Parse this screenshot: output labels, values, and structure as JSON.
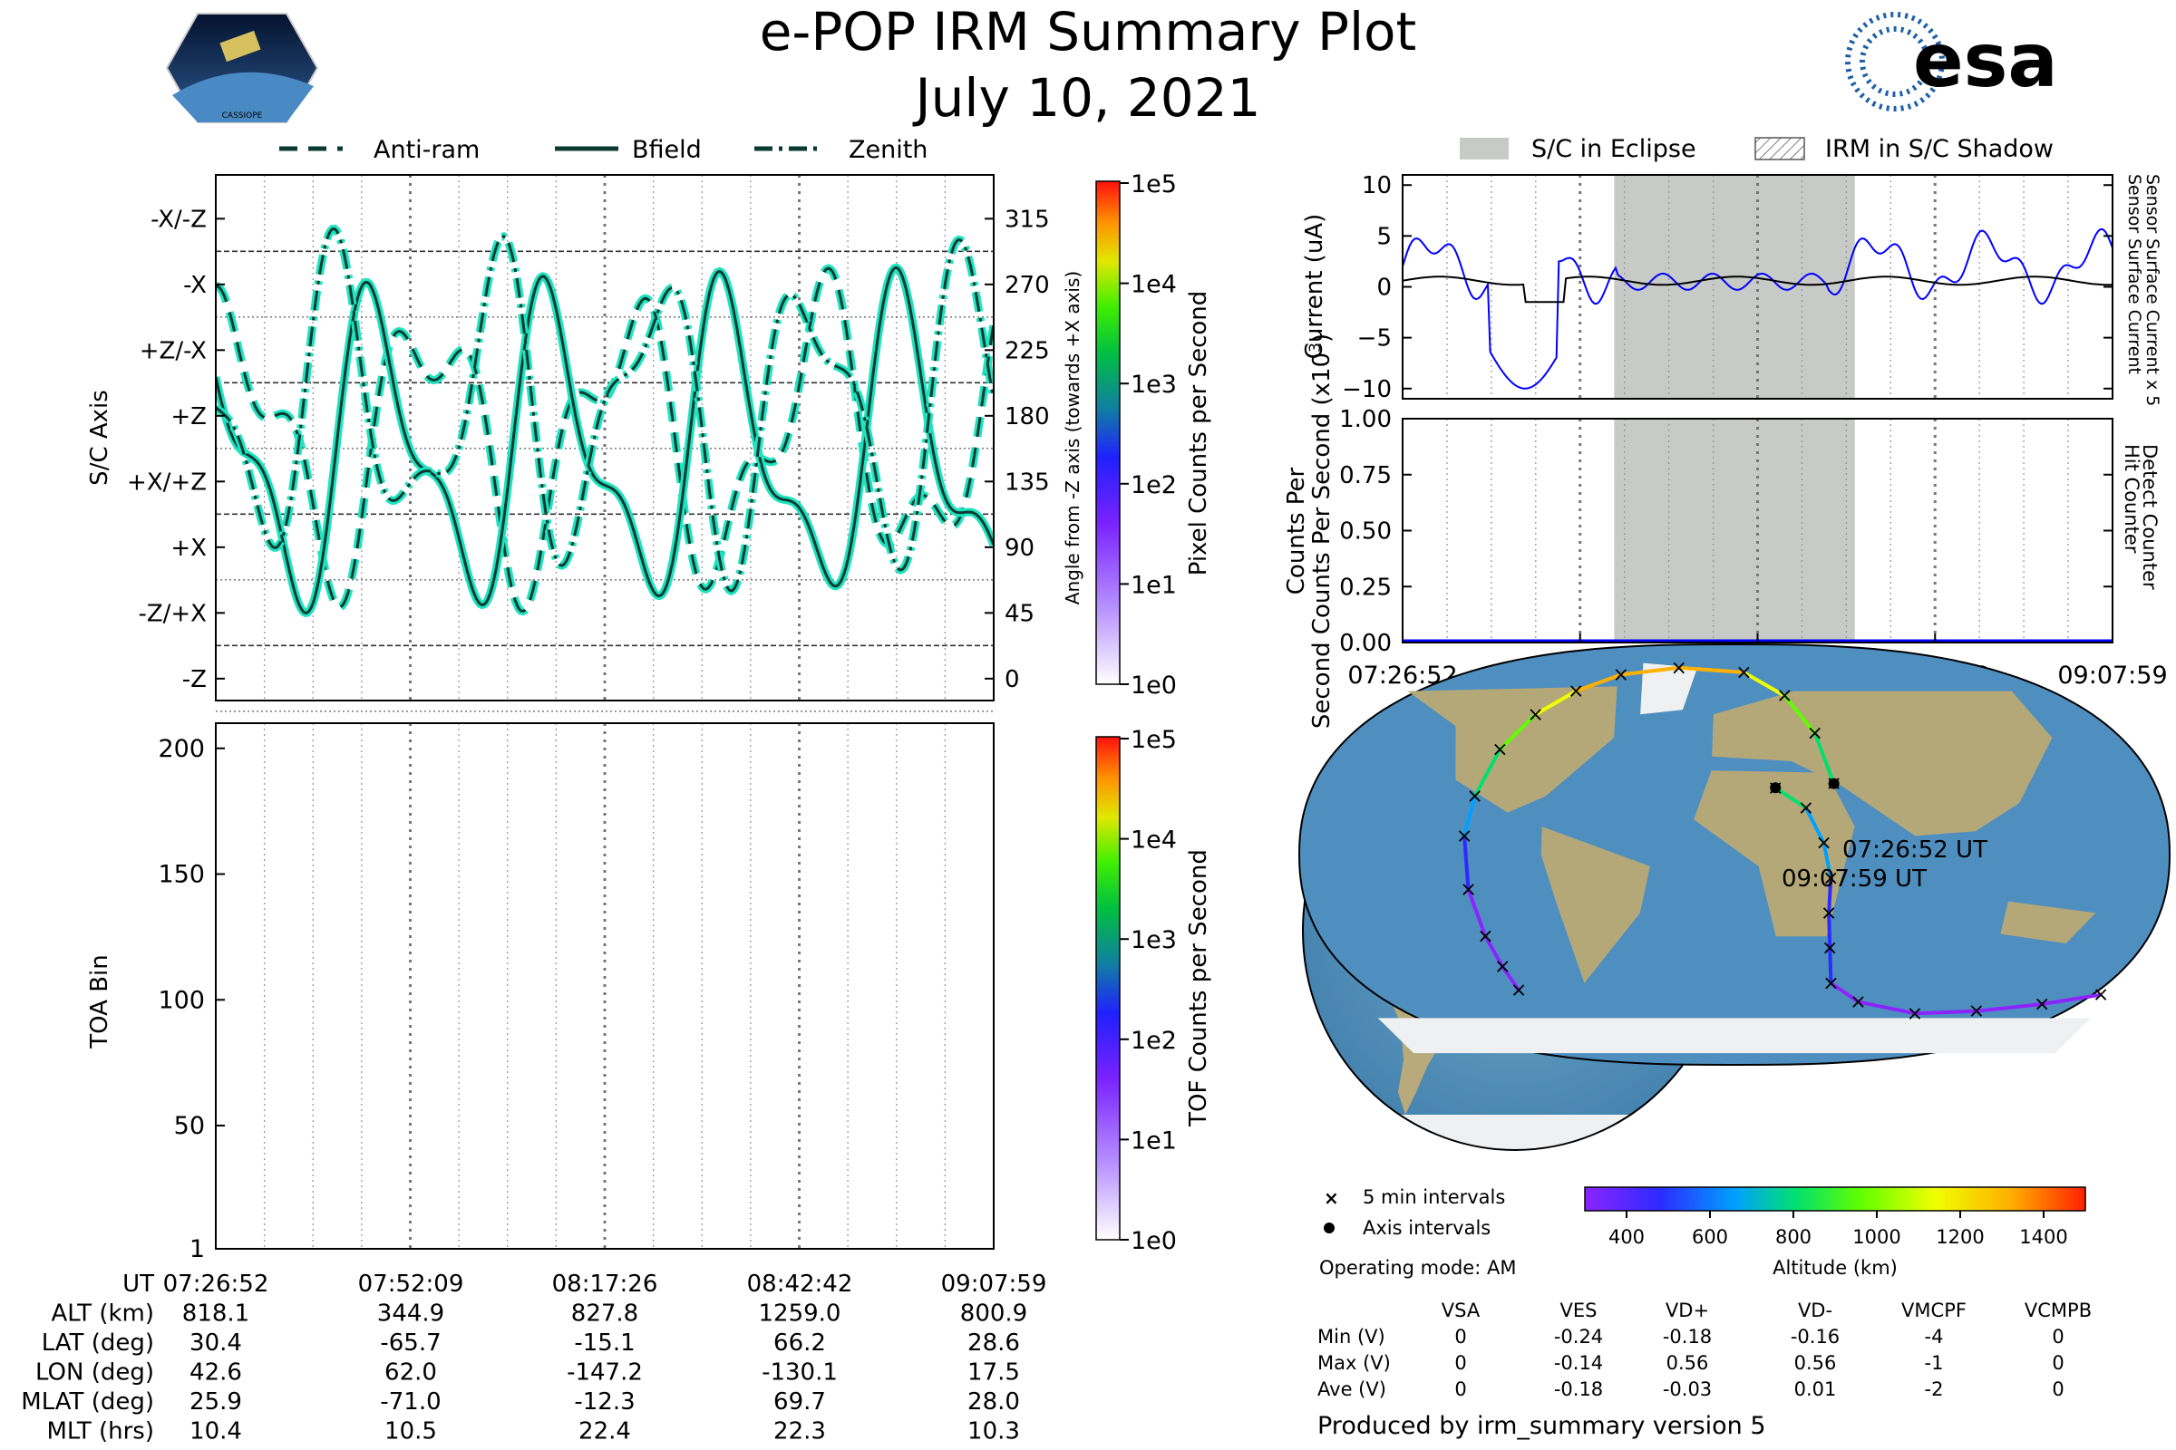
{
  "header": {
    "title": "e-POP IRM Summary Plot",
    "date": "July 10, 2021",
    "mission_badge": "CASSIOPE",
    "agency_logo": "esa"
  },
  "colors": {
    "trace_fill": "#1fe3c0",
    "trace_line": "#0a3a30",
    "eclipse_gray": "#c8cac8",
    "sensor_blue": "#0000ff",
    "altitude_colormap": [
      "#8b24ff",
      "#2b2bff",
      "#00a0ff",
      "#00e070",
      "#60ff00",
      "#f0ff00",
      "#ffb000",
      "#ff2000"
    ]
  },
  "chart_data": [
    {
      "id": "sc-axis-panel",
      "type": "line",
      "legend": [
        "Anti-ram",
        "Bfield",
        "Zenith"
      ],
      "ylabel_left": "S/C Axis",
      "ylabel_right": "Angle from -Z axis (towards +X axis)",
      "yticks_left": [
        "-X/-Z",
        "-X",
        "+Z/-X",
        "+Z",
        "+X/+Z",
        "+X",
        "-Z/+X",
        "-Z"
      ],
      "yticks_right": [
        "315",
        "270",
        "225",
        "180",
        "135",
        "90",
        "45",
        "0"
      ],
      "ylim": [
        -15,
        345
      ],
      "colorbar": {
        "label": "Pixel Counts per Second",
        "ticks": [
          "1e5",
          "1e4",
          "1e3",
          "1e2",
          "1e1",
          "1e0"
        ]
      }
    },
    {
      "id": "toa-panel",
      "type": "heatmap",
      "ylabel": "TOA Bin",
      "yticks": [
        "200",
        "150",
        "100",
        "50",
        "1"
      ],
      "ylim": [
        1,
        210
      ],
      "colorbar": {
        "label": "TOF Counts per Second",
        "ticks": [
          "1e5",
          "1e4",
          "1e3",
          "1e2",
          "1e1",
          "1e0"
        ]
      }
    },
    {
      "id": "current-panel",
      "type": "line",
      "legend": [
        "S/C in Eclipse",
        "IRM in S/C Shadow"
      ],
      "ylabel": "Current (uA)",
      "yticks": [
        "10",
        "5",
        "0",
        "−5",
        "−10"
      ],
      "ylim": [
        -11,
        11
      ],
      "right_label_blue": "Sensor Surface Current x 5",
      "right_label_black": "Sensor Surface Current",
      "eclipse_fraction": [
        0.298,
        0.637
      ]
    },
    {
      "id": "counts-panel",
      "type": "line",
      "ylabel": "Counts Per Second (x10",
      "ylabel_exponent": "3",
      "ylabel_close": ")",
      "yticks": [
        "1.00",
        "0.75",
        "0.50",
        "0.25",
        "0.00"
      ],
      "ylim": [
        0,
        1
      ],
      "right_label_blue": "Detect Counter",
      "right_label_black": "Hit Counter",
      "xticks": [
        "07:26:52",
        "07:52:09",
        "08:17:26",
        "08:42:42",
        "09:07:59"
      ]
    },
    {
      "id": "orbit-map",
      "type": "scatter",
      "start_label": "07:26:52 UT",
      "end_label": "09:07:59 UT",
      "legend": [
        "5 min intervals",
        "Axis intervals"
      ],
      "colorbar": {
        "label": "Altitude (km)",
        "ticks": [
          "400",
          "600",
          "800",
          "1000",
          "1200",
          "1400"
        ],
        "range": [
          300,
          1500
        ]
      },
      "track_lon_lat": [
        [
          42.6,
          30.4
        ],
        [
          37,
          52
        ],
        [
          25,
          68
        ],
        [
          5,
          78
        ],
        [
          -30,
          80
        ],
        [
          -60,
          77
        ],
        [
          -80,
          70
        ],
        [
          -95,
          60
        ],
        [
          -105,
          45
        ],
        [
          -110,
          25
        ],
        [
          -112,
          8
        ],
        [
          -111,
          -15
        ],
        [
          -108,
          -35
        ],
        [
          -105,
          -48
        ],
        [
          -102,
          -58
        ]
      ],
      "track_altitude": [
        818,
        750,
        1000,
        1150,
        1250,
        1280,
        1240,
        1150,
        980,
        820,
        650,
        520,
        420,
        360,
        345
      ],
      "track2_lon_lat": [
        [
          17.5,
          28.6
        ],
        [
          30,
          20
        ],
        [
          37,
          5
        ],
        [
          40,
          -10
        ],
        [
          40,
          -25
        ],
        [
          42,
          -40
        ],
        [
          45,
          -55
        ],
        [
          60,
          -63
        ],
        [
          90,
          -68
        ],
        [
          120,
          -67
        ],
        [
          150,
          -64
        ],
        [
          175,
          -60
        ]
      ],
      "track2_altitude": [
        800,
        760,
        700,
        650,
        590,
        530,
        450,
        400,
        380,
        370,
        360,
        360
      ]
    }
  ],
  "bottom_table": {
    "row_labels": [
      "UT",
      "ALT (km)",
      "LAT (deg)",
      "LON (deg)",
      "MLAT (deg)",
      "MLT (hrs)"
    ],
    "columns": [
      [
        "07:26:52",
        "818.1",
        "30.4",
        "42.6",
        "25.9",
        "10.4"
      ],
      [
        "07:52:09",
        "344.9",
        "-65.7",
        "62.0",
        "-71.0",
        "10.5"
      ],
      [
        "08:17:26",
        "827.8",
        "-15.1",
        "-147.2",
        "-12.3",
        "22.4"
      ],
      [
        "08:42:42",
        "1259.0",
        "66.2",
        "-130.1",
        "69.7",
        "22.3"
      ],
      [
        "09:07:59",
        "800.9",
        "28.6",
        "17.5",
        "28.0",
        "10.3"
      ]
    ]
  },
  "operating_mode": "Operating mode: AM",
  "voltage_table": {
    "headers": [
      "VSA",
      "VES",
      "VD+",
      "VD-",
      "VMCPF",
      "VCMPB"
    ],
    "rows": [
      {
        "label": "Min (V)",
        "values": [
          "0",
          "-0.24",
          "-0.18",
          "-0.16",
          "-4",
          "0"
        ]
      },
      {
        "label": "Max (V)",
        "values": [
          "0",
          "-0.14",
          "0.56",
          "0.56",
          "-1",
          "0"
        ]
      },
      {
        "label": "Ave (V)",
        "values": [
          "0",
          "-0.18",
          "-0.03",
          "0.01",
          "-2",
          "0"
        ]
      }
    ]
  },
  "footer": "Produced by irm_summary version 5"
}
